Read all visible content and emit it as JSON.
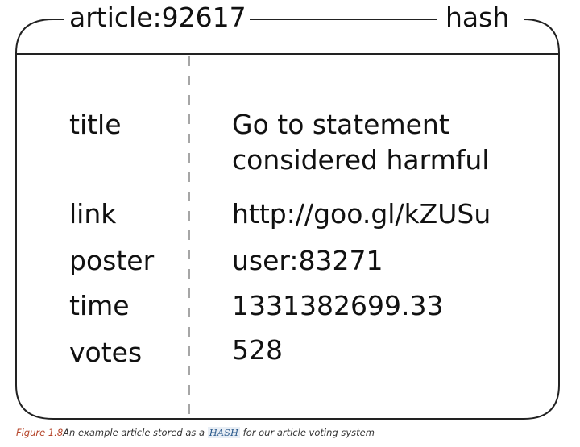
{
  "diagram": {
    "key": "article:92617",
    "type": "hash",
    "fields": [
      {
        "name": "title",
        "value_lines": [
          "Go to statement",
          "considered harmful"
        ]
      },
      {
        "name": "link",
        "value_lines": [
          "http://goo.gl/kZUSu"
        ]
      },
      {
        "name": "poster",
        "value_lines": [
          "user:83271"
        ]
      },
      {
        "name": "time",
        "value_lines": [
          "1331382699.33"
        ]
      },
      {
        "name": "votes",
        "value_lines": [
          "528"
        ]
      }
    ]
  },
  "caption": {
    "figure": "Figure 1.8",
    "pre": "An example article stored as a ",
    "code": "HASH",
    "post": " for our article voting system"
  },
  "colors": {
    "line": "#222222",
    "figure_label": "#b5452a",
    "code_text": "#2b5a8c"
  }
}
